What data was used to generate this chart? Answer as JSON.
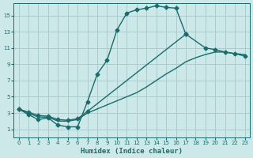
{
  "xlabel": "Humidex (Indice chaleur)",
  "bg_color": "#cce8e8",
  "grid_color": "#aacccc",
  "line_color": "#1a6b6b",
  "xlim": [
    -0.5,
    23.5
  ],
  "ylim": [
    0.0,
    16.5
  ],
  "xticks": [
    0,
    1,
    2,
    3,
    4,
    5,
    6,
    7,
    8,
    9,
    10,
    11,
    12,
    13,
    14,
    15,
    16,
    17,
    18,
    19,
    20,
    21,
    22,
    23
  ],
  "yticks": [
    1,
    3,
    5,
    7,
    9,
    11,
    13,
    15
  ],
  "line1_x": [
    0,
    1,
    2,
    3,
    4,
    5,
    6,
    7,
    8,
    9,
    10,
    11,
    12,
    13,
    14,
    15,
    16,
    17
  ],
  "line1_y": [
    3.5,
    2.8,
    2.2,
    2.4,
    1.5,
    1.3,
    1.3,
    4.4,
    7.8,
    9.5,
    13.2,
    15.3,
    15.7,
    15.9,
    16.2,
    16.0,
    15.9,
    12.7
  ],
  "line2_x": [
    0,
    1,
    2,
    3,
    4,
    5,
    6,
    7,
    8,
    9,
    10,
    11,
    12,
    13,
    14,
    15,
    16,
    17,
    18,
    19,
    20,
    21,
    22,
    23
  ],
  "line2_y": [
    3.5,
    3.0,
    2.5,
    2.5,
    2.0,
    2.0,
    2.2,
    3.0,
    3.5,
    4.0,
    4.5,
    5.0,
    5.5,
    6.2,
    7.0,
    7.8,
    8.5,
    9.3,
    9.8,
    10.2,
    10.5,
    10.5,
    10.3,
    10.2
  ],
  "line3_x": [
    0,
    1,
    2,
    3,
    4,
    5,
    6,
    7,
    17,
    19,
    20,
    21,
    22,
    23
  ],
  "line3_y": [
    3.5,
    3.1,
    2.7,
    2.6,
    2.2,
    2.1,
    2.3,
    3.2,
    12.7,
    11.0,
    10.8,
    10.5,
    10.3,
    10.0
  ],
  "marker": "D",
  "marker_size": 2.5,
  "line_width": 1.0
}
